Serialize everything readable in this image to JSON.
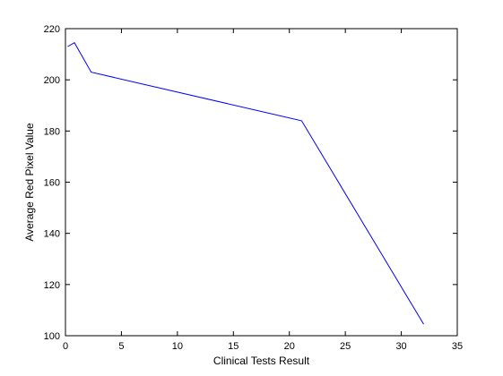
{
  "chart_data": {
    "type": "line",
    "title": "",
    "xlabel": "Clinical Tests Result",
    "ylabel": "Average Red Pixel Value",
    "xlim": [
      0,
      35
    ],
    "ylim": [
      100,
      220
    ],
    "xticks": [
      0,
      5,
      10,
      15,
      20,
      25,
      30,
      35
    ],
    "yticks": [
      100,
      120,
      140,
      160,
      180,
      200,
      220
    ],
    "grid": false,
    "legend": "none",
    "series": [
      {
        "color": "#0000ff",
        "x": [
          0.2,
          0.8,
          2.3,
          21.1,
          32.0
        ],
        "y": [
          213.0,
          214.5,
          203.0,
          184.0,
          104.5
        ]
      }
    ]
  }
}
